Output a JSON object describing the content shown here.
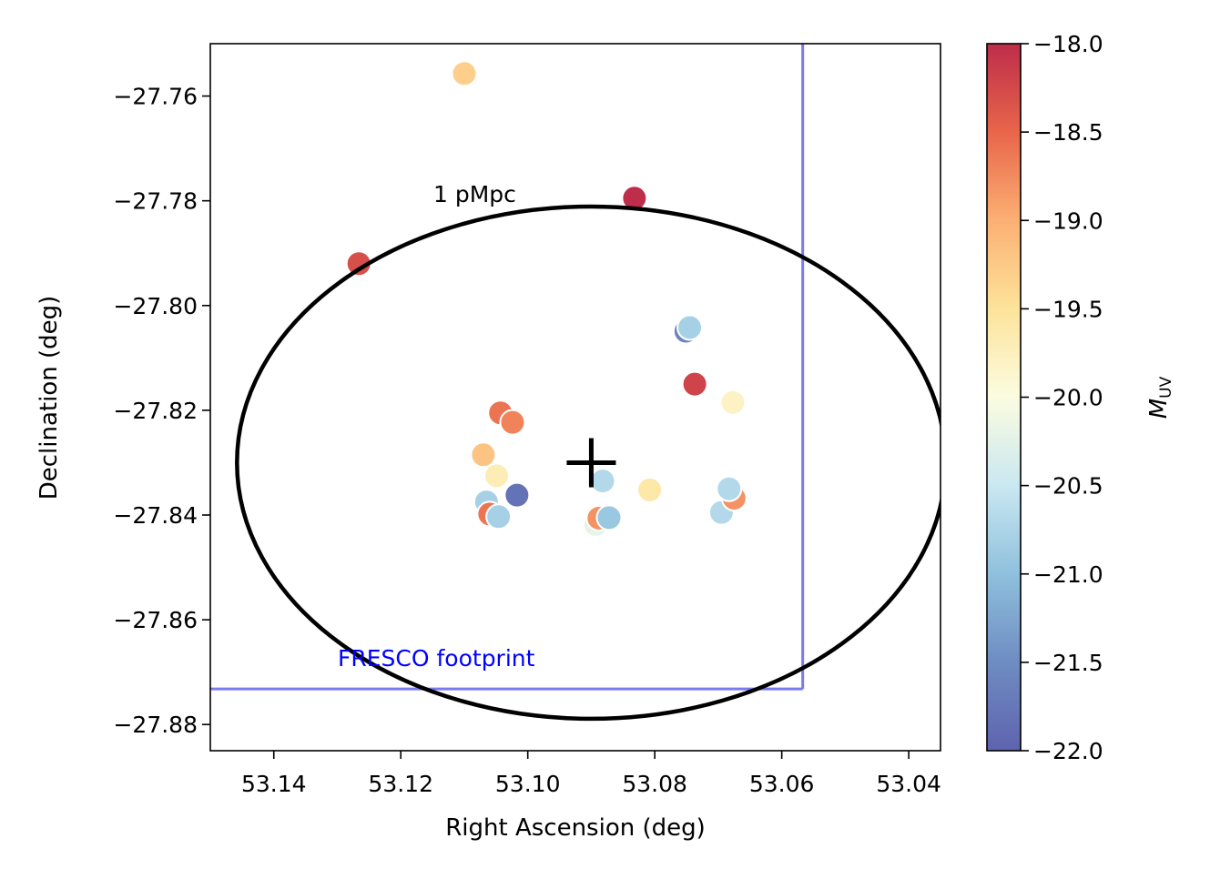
{
  "chart_data": {
    "type": "scatter",
    "title": "",
    "xlabel": "Right Ascension (deg)",
    "ylabel": "Declination (deg)",
    "xlim": [
      53.15,
      53.035
    ],
    "ylim": [
      -27.885,
      -27.75
    ],
    "x_inverted": true,
    "xticks": [
      53.14,
      53.12,
      53.1,
      53.08,
      53.06,
      53.04
    ],
    "xtick_labels": [
      "53.14",
      "53.12",
      "53.10",
      "53.08",
      "53.06",
      "53.04"
    ],
    "yticks": [
      -27.76,
      -27.78,
      -27.8,
      -27.82,
      -27.84,
      -27.86,
      -27.88
    ],
    "ytick_labels": [
      "−27.76",
      "−27.78",
      "−27.80",
      "−27.82",
      "−27.84",
      "−27.86",
      "−27.88"
    ],
    "colorbar": {
      "label": "M_UV",
      "label_main": "M",
      "label_sub": "UV",
      "cmap": "RdYlBu",
      "vmin": -22.0,
      "vmax": -18.0,
      "ticks": [
        -18.0,
        -18.5,
        -19.0,
        -19.5,
        -20.0,
        -20.5,
        -21.0,
        -21.5,
        -22.0
      ],
      "tick_labels": [
        "−18.0",
        "−18.5",
        "−19.0",
        "−19.5",
        "−20.0",
        "−20.5",
        "−21.0",
        "−21.5",
        "−22.0"
      ]
    },
    "points": [
      {
        "ra": 53.11,
        "dec": -27.7557,
        "muv": -19.3
      },
      {
        "ra": 53.0832,
        "dec": -27.7795,
        "muv": -18.0
      },
      {
        "ra": 53.1266,
        "dec": -27.792,
        "muv": -18.3
      },
      {
        "ra": 53.0751,
        "dec": -27.8049,
        "muv": -21.6
      },
      {
        "ra": 53.0745,
        "dec": -27.8042,
        "muv": -20.8
      },
      {
        "ra": 53.0737,
        "dec": -27.815,
        "muv": -18.2
      },
      {
        "ra": 53.0677,
        "dec": -27.8185,
        "muv": -19.8
      },
      {
        "ra": 53.1043,
        "dec": -27.8205,
        "muv": -18.6
      },
      {
        "ra": 53.1024,
        "dec": -27.8223,
        "muv": -18.7
      },
      {
        "ra": 53.107,
        "dec": -27.8285,
        "muv": -19.2
      },
      {
        "ra": 53.1049,
        "dec": -27.8325,
        "muv": -19.7
      },
      {
        "ra": 53.0882,
        "dec": -27.8335,
        "muv": -20.7
      },
      {
        "ra": 53.0808,
        "dec": -27.8352,
        "muv": -19.6
      },
      {
        "ra": 53.1017,
        "dec": -27.8362,
        "muv": -21.8
      },
      {
        "ra": 53.1065,
        "dec": -27.8375,
        "muv": -20.8
      },
      {
        "ra": 53.106,
        "dec": -27.8398,
        "muv": -18.6
      },
      {
        "ra": 53.1046,
        "dec": -27.8403,
        "muv": -20.8
      },
      {
        "ra": 53.0893,
        "dec": -27.8418,
        "muv": -20.2
      },
      {
        "ra": 53.0888,
        "dec": -27.8406,
        "muv": -18.8
      },
      {
        "ra": 53.0872,
        "dec": -27.8405,
        "muv": -20.9
      },
      {
        "ra": 53.0695,
        "dec": -27.8395,
        "muv": -20.7
      },
      {
        "ra": 53.0675,
        "dec": -27.8368,
        "muv": -18.8
      },
      {
        "ra": 53.0683,
        "dec": -27.835,
        "muv": -20.7
      }
    ],
    "center": {
      "ra": 53.09,
      "dec": -27.83,
      "marker": "+"
    },
    "circle": {
      "label": "1 pMpc",
      "ra_center": 53.09,
      "dec_center": -27.83,
      "ra_radius": 0.0558,
      "dec_radius": 0.0489
    },
    "fresco": {
      "label": "FRESCO footprint",
      "color": "#7a7aef",
      "label_color": "#0000ff",
      "ra_edge": 53.0567,
      "dec_edge": -27.8732
    }
  }
}
